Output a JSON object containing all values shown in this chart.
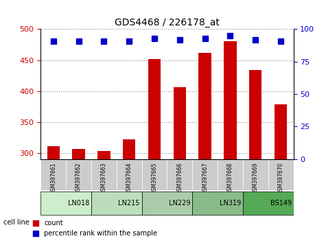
{
  "title": "GDS4468 / 226178_at",
  "samples": [
    "GSM397661",
    "GSM397662",
    "GSM397663",
    "GSM397664",
    "GSM397665",
    "GSM397666",
    "GSM397667",
    "GSM397668",
    "GSM397669",
    "GSM397670"
  ],
  "count_values": [
    311,
    306,
    303,
    322,
    452,
    406,
    462,
    481,
    434,
    379
  ],
  "percentile_values": [
    91,
    91,
    91,
    91,
    93,
    92,
    93,
    95,
    92,
    91
  ],
  "ylim_left": [
    290,
    500
  ],
  "ylim_right": [
    0,
    100
  ],
  "yticks_left": [
    300,
    350,
    400,
    450,
    500
  ],
  "yticks_right": [
    0,
    25,
    50,
    75,
    100
  ],
  "bar_color": "#cc0000",
  "dot_color": "#0000cc",
  "cell_lines": [
    {
      "name": "LN018",
      "samples": [
        0,
        1
      ],
      "color": "#ccffcc"
    },
    {
      "name": "LN215",
      "samples": [
        2,
        3
      ],
      "color": "#ccffcc"
    },
    {
      "name": "LN229",
      "samples": [
        4,
        5
      ],
      "color": "#aaffaa"
    },
    {
      "name": "LN319",
      "samples": [
        6,
        7
      ],
      "color": "#88ff88"
    },
    {
      "name": "BS149",
      "samples": [
        8,
        9
      ],
      "color": "#44cc44"
    }
  ],
  "cell_line_colors_hex": [
    "#d4f0d4",
    "#d4f0d4",
    "#aaddaa",
    "#77cc77",
    "#44bb44"
  ],
  "grid_color": "#888888",
  "bg_plot": "#ffffff",
  "bg_sample_row": "#cccccc",
  "ylabel_left_color": "#cc0000",
  "ylabel_right_color": "#0000cc"
}
